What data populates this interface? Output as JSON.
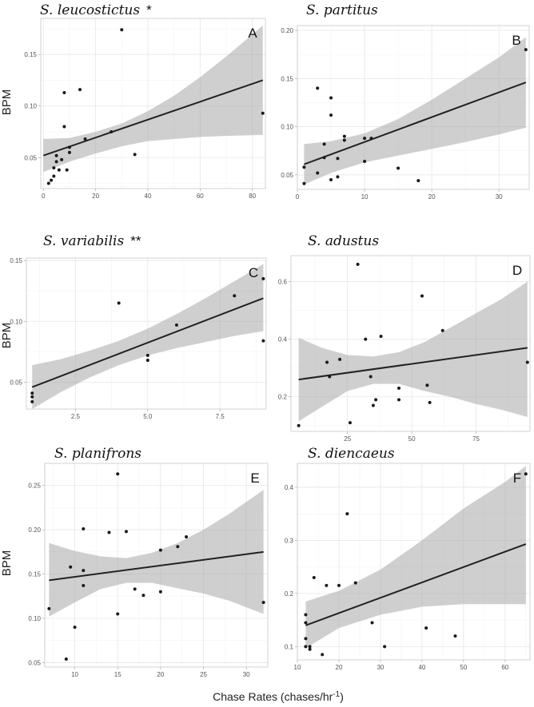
{
  "figure": {
    "xlabel": "Chase Rates (chases/hr",
    "xlabel_sup": "-1",
    "xlabel_close": ")"
  },
  "chart_data": [
    {
      "type": "scatter",
      "panel": "A",
      "title": "S. leucostictus",
      "significance": "*",
      "ylabel": "BPM",
      "xlim": [
        -1,
        85
      ],
      "ylim": [
        0.02,
        0.185
      ],
      "xticks": [
        0,
        20,
        40,
        60,
        80
      ],
      "yticks": [
        0.05,
        0.1,
        0.15
      ],
      "xtick_labels": [
        "0",
        "20",
        "40",
        "60",
        "80"
      ],
      "ytick_labels": [
        "0.05",
        "0.10",
        "0.15"
      ],
      "x": [
        2,
        3,
        4,
        4,
        5,
        5,
        6,
        7,
        8,
        8,
        9,
        10,
        10,
        14,
        16,
        26,
        30,
        35,
        84
      ],
      "y": [
        0.025,
        0.028,
        0.032,
        0.04,
        0.046,
        0.052,
        0.038,
        0.048,
        0.08,
        0.113,
        0.038,
        0.06,
        0.055,
        0.116,
        0.068,
        0.075,
        0.174,
        0.053,
        0.093
      ],
      "fit": {
        "x": [
          0,
          84
        ],
        "y": [
          0.052,
          0.125
        ]
      },
      "ci_upper": [
        [
          0,
          0.068
        ],
        [
          10,
          0.069
        ],
        [
          20,
          0.075
        ],
        [
          30,
          0.083
        ],
        [
          40,
          0.095
        ],
        [
          50,
          0.11
        ],
        [
          60,
          0.128
        ],
        [
          70,
          0.148
        ],
        [
          84,
          0.178
        ]
      ],
      "ci_lower": [
        [
          0,
          0.036
        ],
        [
          10,
          0.046
        ],
        [
          20,
          0.054
        ],
        [
          30,
          0.061
        ],
        [
          40,
          0.066
        ],
        [
          50,
          0.068
        ],
        [
          60,
          0.07
        ],
        [
          70,
          0.071
        ],
        [
          84,
          0.072
        ]
      ]
    },
    {
      "type": "scatter",
      "panel": "B",
      "title": "S. partitus",
      "significance": "",
      "ylabel": "",
      "xlim": [
        0,
        34.5
      ],
      "ylim": [
        0.035,
        0.205
      ],
      "xticks": [
        0,
        10,
        20,
        30
      ],
      "yticks": [
        0.05,
        0.1,
        0.15,
        0.2
      ],
      "xtick_labels": [
        "0",
        "10",
        "20",
        "30"
      ],
      "ytick_labels": [
        "0.05",
        "0.10",
        "0.15",
        "0.20"
      ],
      "x": [
        1,
        1,
        3,
        3,
        4,
        4,
        5,
        5,
        5,
        6,
        6,
        7,
        7,
        10,
        10,
        11,
        15,
        18,
        34
      ],
      "y": [
        0.041,
        0.058,
        0.052,
        0.14,
        0.068,
        0.082,
        0.045,
        0.112,
        0.13,
        0.067,
        0.048,
        0.09,
        0.086,
        0.064,
        0.088,
        0.088,
        0.057,
        0.044,
        0.18
      ],
      "fit": {
        "x": [
          1,
          34
        ],
        "y": [
          0.061,
          0.146
        ]
      },
      "ci_upper": [
        [
          1,
          0.082
        ],
        [
          5,
          0.085
        ],
        [
          10,
          0.093
        ],
        [
          15,
          0.108
        ],
        [
          20,
          0.128
        ],
        [
          25,
          0.15
        ],
        [
          30,
          0.172
        ],
        [
          34,
          0.193
        ]
      ],
      "ci_lower": [
        [
          1,
          0.04
        ],
        [
          5,
          0.052
        ],
        [
          10,
          0.063
        ],
        [
          15,
          0.07
        ],
        [
          20,
          0.077
        ],
        [
          25,
          0.084
        ],
        [
          30,
          0.092
        ],
        [
          34,
          0.099
        ]
      ]
    },
    {
      "type": "scatter",
      "panel": "C",
      "title": "S. variabilis",
      "significance": "**",
      "ylabel": "BPM",
      "xlim": [
        0.8,
        9.1
      ],
      "ylim": [
        0.028,
        0.152
      ],
      "xticks": [
        2.5,
        5.0,
        7.5
      ],
      "yticks": [
        0.05,
        0.1,
        0.15
      ],
      "xtick_labels": [
        "2.5",
        "5.0",
        "7.5"
      ],
      "ytick_labels": [
        "0.05",
        "0.10",
        "0.15"
      ],
      "x": [
        1,
        1,
        1,
        4,
        5,
        5,
        6,
        8,
        9,
        9
      ],
      "y": [
        0.034,
        0.038,
        0.041,
        0.115,
        0.068,
        0.072,
        0.097,
        0.121,
        0.084,
        0.135
      ],
      "fit": {
        "x": [
          1,
          9
        ],
        "y": [
          0.046,
          0.119
        ]
      },
      "ci_upper": [
        [
          1,
          0.064
        ],
        [
          2,
          0.069
        ],
        [
          3,
          0.076
        ],
        [
          4,
          0.084
        ],
        [
          5,
          0.094
        ],
        [
          6,
          0.106
        ],
        [
          7,
          0.119
        ],
        [
          8,
          0.133
        ],
        [
          9,
          0.147
        ]
      ],
      "ci_lower": [
        [
          1,
          0.028
        ],
        [
          2,
          0.042
        ],
        [
          3,
          0.054
        ],
        [
          4,
          0.064
        ],
        [
          5,
          0.072
        ],
        [
          6,
          0.078
        ],
        [
          7,
          0.083
        ],
        [
          8,
          0.088
        ],
        [
          9,
          0.092
        ]
      ]
    },
    {
      "type": "scatter",
      "panel": "D",
      "title": "S. adustus",
      "significance": "",
      "ylabel": "",
      "xlim": [
        3,
        96
      ],
      "ylim": [
        0.08,
        0.69
      ],
      "xticks": [
        25,
        50,
        75
      ],
      "yticks": [
        0.2,
        0.4,
        0.6
      ],
      "xtick_labels": [
        "25",
        "50",
        "75"
      ],
      "ytick_labels": [
        "0.2",
        "0.4",
        "0.6"
      ],
      "x": [
        6,
        17,
        18,
        22,
        26,
        29,
        32,
        34,
        35,
        36,
        38,
        45,
        45,
        54,
        56,
        57,
        62,
        95
      ],
      "y": [
        0.1,
        0.32,
        0.27,
        0.33,
        0.11,
        0.66,
        0.4,
        0.27,
        0.17,
        0.19,
        0.41,
        0.23,
        0.19,
        0.55,
        0.24,
        0.18,
        0.43,
        0.32
      ],
      "fit": {
        "x": [
          6,
          95
        ],
        "y": [
          0.26,
          0.37
        ]
      },
      "ci_upper": [
        [
          6,
          0.405
        ],
        [
          15,
          0.37
        ],
        [
          25,
          0.345
        ],
        [
          35,
          0.34
        ],
        [
          45,
          0.355
        ],
        [
          55,
          0.39
        ],
        [
          65,
          0.44
        ],
        [
          75,
          0.49
        ],
        [
          85,
          0.54
        ],
        [
          95,
          0.6
        ]
      ],
      "ci_lower": [
        [
          6,
          0.115
        ],
        [
          15,
          0.165
        ],
        [
          25,
          0.22
        ],
        [
          35,
          0.245
        ],
        [
          45,
          0.245
        ],
        [
          55,
          0.22
        ],
        [
          65,
          0.2
        ],
        [
          75,
          0.175
        ],
        [
          85,
          0.155
        ],
        [
          95,
          0.13
        ]
      ]
    },
    {
      "type": "scatter",
      "panel": "E",
      "title": "S. planifrons",
      "significance": "",
      "ylabel": "BPM",
      "xlim": [
        6.5,
        32.5
      ],
      "ylim": [
        0.045,
        0.275
      ],
      "xticks": [
        10,
        15,
        20,
        25,
        30
      ],
      "yticks": [
        0.05,
        0.1,
        0.15,
        0.2,
        0.25
      ],
      "xtick_labels": [
        "10",
        "15",
        "20",
        "25",
        "30"
      ],
      "ytick_labels": [
        "0.05",
        "0.10",
        "0.15",
        "0.20",
        "0.25"
      ],
      "x": [
        7,
        9,
        9.5,
        10,
        11,
        11,
        11,
        14,
        15,
        15,
        16,
        17,
        18,
        20,
        20,
        22,
        23,
        32
      ],
      "y": [
        0.111,
        0.054,
        0.158,
        0.09,
        0.201,
        0.154,
        0.137,
        0.197,
        0.263,
        0.105,
        0.198,
        0.133,
        0.126,
        0.177,
        0.13,
        0.181,
        0.192,
        0.118
      ],
      "fit": {
        "x": [
          7,
          32
        ],
        "y": [
          0.143,
          0.175
        ]
      },
      "ci_upper": [
        [
          7,
          0.185
        ],
        [
          10,
          0.176
        ],
        [
          13,
          0.17
        ],
        [
          16,
          0.168
        ],
        [
          19,
          0.174
        ],
        [
          22,
          0.185
        ],
        [
          25,
          0.2
        ],
        [
          28,
          0.218
        ],
        [
          32,
          0.245
        ]
      ],
      "ci_lower": [
        [
          7,
          0.102
        ],
        [
          10,
          0.118
        ],
        [
          13,
          0.133
        ],
        [
          16,
          0.14
        ],
        [
          19,
          0.14
        ],
        [
          22,
          0.134
        ],
        [
          25,
          0.128
        ],
        [
          28,
          0.12
        ],
        [
          32,
          0.105
        ]
      ]
    },
    {
      "type": "scatter",
      "panel": "F",
      "title": "S. diencaeus",
      "significance": "",
      "ylabel": "",
      "xlim": [
        10,
        66
      ],
      "ylim": [
        0.075,
        0.445
      ],
      "xticks": [
        10,
        20,
        30,
        40,
        50,
        60
      ],
      "yticks": [
        0.1,
        0.2,
        0.3,
        0.4
      ],
      "xtick_labels": [
        "10",
        "20",
        "30",
        "40",
        "50",
        "60"
      ],
      "ytick_labels": [
        "0.1",
        "0.2",
        "0.3",
        "0.4"
      ],
      "x": [
        12,
        12,
        12,
        12,
        13,
        13,
        14,
        16,
        17,
        20,
        22,
        24,
        28,
        31,
        41,
        48,
        65
      ],
      "y": [
        0.145,
        0.16,
        0.115,
        0.1,
        0.1,
        0.095,
        0.23,
        0.085,
        0.215,
        0.215,
        0.35,
        0.22,
        0.145,
        0.1,
        0.135,
        0.12,
        0.425
      ],
      "fit": {
        "x": [
          12,
          65
        ],
        "y": [
          0.14,
          0.293
        ]
      },
      "ci_upper": [
        [
          12,
          0.185
        ],
        [
          20,
          0.205
        ],
        [
          30,
          0.245
        ],
        [
          40,
          0.3
        ],
        [
          50,
          0.36
        ],
        [
          60,
          0.41
        ],
        [
          65,
          0.44
        ]
      ],
      "ci_lower": [
        [
          12,
          0.097
        ],
        [
          20,
          0.135
        ],
        [
          30,
          0.16
        ],
        [
          40,
          0.175
        ],
        [
          50,
          0.18
        ],
        [
          60,
          0.18
        ],
        [
          65,
          0.18
        ]
      ]
    }
  ]
}
